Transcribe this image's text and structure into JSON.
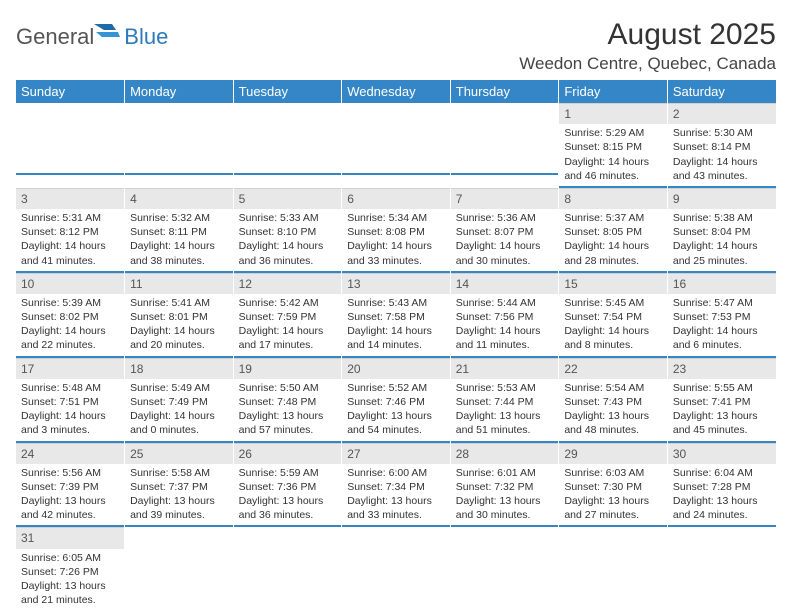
{
  "brand": {
    "general": "General",
    "blue": "Blue"
  },
  "title": "August 2025",
  "location": "Weedon Centre, Quebec, Canada",
  "colors": {
    "header_bg": "#3486c7",
    "header_text": "#ffffff",
    "daynum_bg": "#e8e8e8",
    "row_divider": "#3486c7",
    "body_text": "#333333",
    "logo_blue": "#2b7bbd",
    "logo_gray": "#555555"
  },
  "weekdays": [
    "Sunday",
    "Monday",
    "Tuesday",
    "Wednesday",
    "Thursday",
    "Friday",
    "Saturday"
  ],
  "weeks": [
    [
      null,
      null,
      null,
      null,
      null,
      {
        "n": "1",
        "sr": "5:29 AM",
        "ss": "8:15 PM",
        "dl": "14 hours and 46 minutes."
      },
      {
        "n": "2",
        "sr": "5:30 AM",
        "ss": "8:14 PM",
        "dl": "14 hours and 43 minutes."
      }
    ],
    [
      {
        "n": "3",
        "sr": "5:31 AM",
        "ss": "8:12 PM",
        "dl": "14 hours and 41 minutes."
      },
      {
        "n": "4",
        "sr": "5:32 AM",
        "ss": "8:11 PM",
        "dl": "14 hours and 38 minutes."
      },
      {
        "n": "5",
        "sr": "5:33 AM",
        "ss": "8:10 PM",
        "dl": "14 hours and 36 minutes."
      },
      {
        "n": "6",
        "sr": "5:34 AM",
        "ss": "8:08 PM",
        "dl": "14 hours and 33 minutes."
      },
      {
        "n": "7",
        "sr": "5:36 AM",
        "ss": "8:07 PM",
        "dl": "14 hours and 30 minutes."
      },
      {
        "n": "8",
        "sr": "5:37 AM",
        "ss": "8:05 PM",
        "dl": "14 hours and 28 minutes."
      },
      {
        "n": "9",
        "sr": "5:38 AM",
        "ss": "8:04 PM",
        "dl": "14 hours and 25 minutes."
      }
    ],
    [
      {
        "n": "10",
        "sr": "5:39 AM",
        "ss": "8:02 PM",
        "dl": "14 hours and 22 minutes."
      },
      {
        "n": "11",
        "sr": "5:41 AM",
        "ss": "8:01 PM",
        "dl": "14 hours and 20 minutes."
      },
      {
        "n": "12",
        "sr": "5:42 AM",
        "ss": "7:59 PM",
        "dl": "14 hours and 17 minutes."
      },
      {
        "n": "13",
        "sr": "5:43 AM",
        "ss": "7:58 PM",
        "dl": "14 hours and 14 minutes."
      },
      {
        "n": "14",
        "sr": "5:44 AM",
        "ss": "7:56 PM",
        "dl": "14 hours and 11 minutes."
      },
      {
        "n": "15",
        "sr": "5:45 AM",
        "ss": "7:54 PM",
        "dl": "14 hours and 8 minutes."
      },
      {
        "n": "16",
        "sr": "5:47 AM",
        "ss": "7:53 PM",
        "dl": "14 hours and 6 minutes."
      }
    ],
    [
      {
        "n": "17",
        "sr": "5:48 AM",
        "ss": "7:51 PM",
        "dl": "14 hours and 3 minutes."
      },
      {
        "n": "18",
        "sr": "5:49 AM",
        "ss": "7:49 PM",
        "dl": "14 hours and 0 minutes."
      },
      {
        "n": "19",
        "sr": "5:50 AM",
        "ss": "7:48 PM",
        "dl": "13 hours and 57 minutes."
      },
      {
        "n": "20",
        "sr": "5:52 AM",
        "ss": "7:46 PM",
        "dl": "13 hours and 54 minutes."
      },
      {
        "n": "21",
        "sr": "5:53 AM",
        "ss": "7:44 PM",
        "dl": "13 hours and 51 minutes."
      },
      {
        "n": "22",
        "sr": "5:54 AM",
        "ss": "7:43 PM",
        "dl": "13 hours and 48 minutes."
      },
      {
        "n": "23",
        "sr": "5:55 AM",
        "ss": "7:41 PM",
        "dl": "13 hours and 45 minutes."
      }
    ],
    [
      {
        "n": "24",
        "sr": "5:56 AM",
        "ss": "7:39 PM",
        "dl": "13 hours and 42 minutes."
      },
      {
        "n": "25",
        "sr": "5:58 AM",
        "ss": "7:37 PM",
        "dl": "13 hours and 39 minutes."
      },
      {
        "n": "26",
        "sr": "5:59 AM",
        "ss": "7:36 PM",
        "dl": "13 hours and 36 minutes."
      },
      {
        "n": "27",
        "sr": "6:00 AM",
        "ss": "7:34 PM",
        "dl": "13 hours and 33 minutes."
      },
      {
        "n": "28",
        "sr": "6:01 AM",
        "ss": "7:32 PM",
        "dl": "13 hours and 30 minutes."
      },
      {
        "n": "29",
        "sr": "6:03 AM",
        "ss": "7:30 PM",
        "dl": "13 hours and 27 minutes."
      },
      {
        "n": "30",
        "sr": "6:04 AM",
        "ss": "7:28 PM",
        "dl": "13 hours and 24 minutes."
      }
    ],
    [
      {
        "n": "31",
        "sr": "6:05 AM",
        "ss": "7:26 PM",
        "dl": "13 hours and 21 minutes."
      },
      null,
      null,
      null,
      null,
      null,
      null
    ]
  ],
  "labels": {
    "sunrise": "Sunrise:",
    "sunset": "Sunset:",
    "daylight": "Daylight:"
  }
}
